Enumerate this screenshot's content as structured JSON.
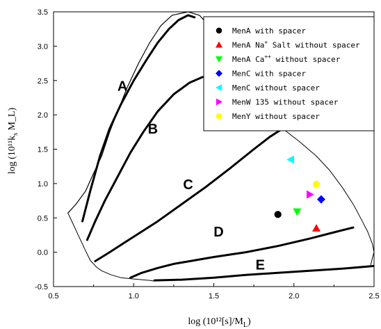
{
  "chart_data": {
    "type": "scatter",
    "xlabel": "log (10¹²[s]/M_L)",
    "ylabel": "log (10¹¹k_s M_L)",
    "xlim": [
      0.5,
      2.5
    ],
    "ylim": [
      -0.5,
      3.5
    ],
    "x_ticks": [
      "0.5",
      "1.0",
      "1.5",
      "2.0",
      "2.5"
    ],
    "y_ticks": [
      "-0.5",
      "0.0",
      "0.5",
      "1.0",
      "1.5",
      "2.0",
      "2.5",
      "3.0",
      "3.5"
    ],
    "legend_position": "top-right",
    "series": [
      {
        "name": "MenA with spacer",
        "marker": "circle",
        "color": "#000000",
        "x": [
          1.9
        ],
        "y": [
          0.55
        ]
      },
      {
        "name_parts": [
          "MenA Na",
          "+",
          " Salt without spacer"
        ],
        "marker": "triangle-up",
        "color": "#ff0000",
        "x": [
          2.14
        ],
        "y": [
          0.35
        ]
      },
      {
        "name_parts": [
          "MenA Ca",
          "++",
          " without spacer"
        ],
        "marker": "triangle-down",
        "color": "#00ff00",
        "x": [
          2.02
        ],
        "y": [
          0.59
        ]
      },
      {
        "name": "MenC with spacer",
        "marker": "diamond",
        "color": "#0000ff",
        "x": [
          2.17
        ],
        "y": [
          0.77
        ]
      },
      {
        "name": "MenC without spacer",
        "marker": "triangle-left",
        "color": "#00ffff",
        "x": [
          1.98
        ],
        "y": [
          1.35
        ]
      },
      {
        "name": "MenW 135 without spacer",
        "marker": "triangle-right",
        "color": "#ff00ff",
        "x": [
          2.1
        ],
        "y": [
          0.84
        ]
      },
      {
        "name": "MenY without spacer",
        "marker": "circle",
        "color": "#ffff00",
        "x": [
          2.14
        ],
        "y": [
          0.99
        ]
      }
    ],
    "regions": [
      {
        "label": "A",
        "x": 0.93,
        "y": 2.35
      },
      {
        "label": "B",
        "x": 1.12,
        "y": 1.73
      },
      {
        "label": "C",
        "x": 1.34,
        "y": 0.92
      },
      {
        "label": "D",
        "x": 1.53,
        "y": 0.23
      },
      {
        "label": "E",
        "x": 1.79,
        "y": -0.25
      }
    ],
    "curves": [
      {
        "id": "outer-boundary",
        "width": 1.2,
        "points": [
          [
            0.59,
            0.57
          ],
          [
            0.64,
            0.7
          ],
          [
            0.7,
            0.89
          ],
          [
            0.75,
            1.15
          ],
          [
            0.8,
            1.4
          ],
          [
            0.85,
            1.75
          ],
          [
            0.9,
            2.05
          ],
          [
            0.96,
            2.4
          ],
          [
            1.03,
            2.75
          ],
          [
            1.1,
            3.05
          ],
          [
            1.17,
            3.3
          ],
          [
            1.24,
            3.45
          ],
          [
            1.34,
            3.5
          ],
          [
            1.41,
            3.45
          ],
          [
            1.45,
            3.35
          ],
          [
            1.48,
            3.25
          ],
          [
            1.5,
            3.2
          ]
        ]
      },
      {
        "id": "right-boundary",
        "width": 1,
        "points": [
          [
            1.93,
            1.8
          ],
          [
            2.04,
            1.6
          ],
          [
            2.14,
            1.4
          ],
          [
            2.22,
            1.2
          ],
          [
            2.3,
            0.95
          ],
          [
            2.37,
            0.7
          ],
          [
            2.42,
            0.48
          ],
          [
            2.46,
            0.3
          ],
          [
            2.49,
            0.12
          ],
          [
            2.5,
            0.0
          ],
          [
            2.49,
            -0.08
          ],
          [
            2.48,
            -0.18
          ]
        ]
      },
      {
        "id": "bottom-left-boundary",
        "width": 1,
        "points": [
          [
            0.59,
            0.57
          ],
          [
            0.62,
            0.42
          ],
          [
            0.66,
            0.22
          ],
          [
            0.7,
            0.02
          ],
          [
            0.73,
            -0.12
          ],
          [
            0.77,
            -0.22
          ],
          [
            0.8,
            -0.27
          ],
          [
            0.86,
            -0.33
          ],
          [
            0.92,
            -0.37
          ],
          [
            1.0,
            -0.39
          ],
          [
            1.05,
            -0.4
          ],
          [
            1.1,
            -0.41
          ],
          [
            1.13,
            -0.42
          ]
        ]
      },
      {
        "id": "bottom-edge",
        "width": 3,
        "points": [
          [
            1.13,
            -0.41
          ],
          [
            1.3,
            -0.4
          ],
          [
            1.5,
            -0.37
          ],
          [
            1.7,
            -0.33
          ],
          [
            1.9,
            -0.3
          ],
          [
            2.1,
            -0.27
          ],
          [
            2.3,
            -0.24
          ],
          [
            2.5,
            -0.2
          ]
        ]
      },
      {
        "id": "line-AB",
        "width": 3,
        "points": [
          [
            0.68,
            0.45
          ],
          [
            0.73,
            0.9
          ],
          [
            0.79,
            1.4
          ],
          [
            0.85,
            1.8
          ],
          [
            0.92,
            2.15
          ],
          [
            1.0,
            2.5
          ],
          [
            1.08,
            2.8
          ],
          [
            1.15,
            3.05
          ],
          [
            1.22,
            3.25
          ],
          [
            1.28,
            3.38
          ],
          [
            1.34,
            3.45
          ],
          [
            1.38,
            3.42
          ]
        ]
      },
      {
        "id": "line-BC",
        "width": 3,
        "points": [
          [
            0.71,
            0.18
          ],
          [
            0.76,
            0.45
          ],
          [
            0.82,
            0.75
          ],
          [
            0.9,
            1.1
          ],
          [
            0.98,
            1.45
          ],
          [
            1.06,
            1.75
          ],
          [
            1.15,
            2.05
          ],
          [
            1.25,
            2.3
          ],
          [
            1.35,
            2.47
          ],
          [
            1.43,
            2.55
          ]
        ]
      },
      {
        "id": "line-CD",
        "width": 3,
        "points": [
          [
            0.76,
            -0.13
          ],
          [
            0.85,
            0.0
          ],
          [
            0.95,
            0.15
          ],
          [
            1.05,
            0.3
          ],
          [
            1.15,
            0.45
          ],
          [
            1.3,
            0.7
          ],
          [
            1.45,
            0.95
          ],
          [
            1.6,
            1.22
          ],
          [
            1.75,
            1.5
          ],
          [
            1.85,
            1.68
          ],
          [
            1.93,
            1.8
          ]
        ]
      },
      {
        "id": "line-DE",
        "width": 3,
        "points": [
          [
            0.98,
            -0.37
          ],
          [
            1.05,
            -0.3
          ],
          [
            1.15,
            -0.23
          ],
          [
            1.25,
            -0.17
          ],
          [
            1.35,
            -0.13
          ],
          [
            1.5,
            -0.07
          ],
          [
            1.7,
            0.0
          ],
          [
            1.9,
            0.09
          ],
          [
            2.1,
            0.2
          ],
          [
            2.25,
            0.29
          ],
          [
            2.37,
            0.36
          ]
        ]
      }
    ]
  }
}
